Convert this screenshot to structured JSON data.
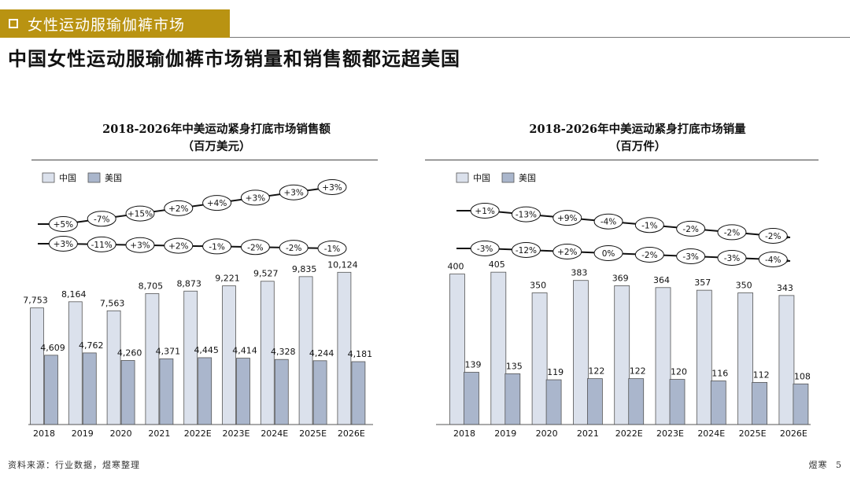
{
  "section_band": {
    "label": "女性运动服瑜伽裤市场"
  },
  "headline": "中国女性运动服瑜伽裤市场销量和销售额都远超美国",
  "source": "资料来源：行业数据，煜寒整理",
  "footer": {
    "brand": "煜寒",
    "page": "5"
  },
  "colors": {
    "china": "#dbe1ec",
    "us": "#aab6cc",
    "band": "#b99312"
  },
  "chart_data": [
    {
      "type": "bar",
      "title": "2018-2026年中美运动紧身打底市场销售额",
      "subtitle": "（百万美元）",
      "legend": [
        "中国",
        "美国"
      ],
      "categories": [
        "2018",
        "2019",
        "2020",
        "2021",
        "2022E",
        "2023E",
        "2024E",
        "2025E",
        "2026E"
      ],
      "series": [
        {
          "name": "中国",
          "values": [
            7753,
            8164,
            7563,
            8705,
            8873,
            9221,
            9527,
            9835,
            10124
          ],
          "labels": [
            "7,753",
            "8,164",
            "7,563",
            "8,705",
            "8,873",
            "9,221",
            "9,527",
            "9,835",
            "10,124"
          ]
        },
        {
          "name": "美国",
          "values": [
            4609,
            4762,
            4260,
            4371,
            4445,
            4414,
            4328,
            4244,
            4181
          ],
          "labels": [
            "4,609",
            "4,762",
            "4,260",
            "4,371",
            "4,445",
            "4,414",
            "4,328",
            "4,244",
            "4,181"
          ]
        }
      ],
      "growth_china": [
        "+5%",
        "-7%",
        "+15%",
        "+2%",
        "+4%",
        "+3%",
        "+3%",
        "+3%"
      ],
      "growth_us": [
        "+3%",
        "-11%",
        "+3%",
        "+2%",
        "-1%",
        "-2%",
        "-2%",
        "-1%"
      ],
      "ylim": [
        0,
        11500
      ]
    },
    {
      "type": "bar",
      "title": "2018-2026年中美运动紧身打底市场销量",
      "subtitle": "（百万件）",
      "legend": [
        "中国",
        "美国"
      ],
      "categories": [
        "2018",
        "2019",
        "2020",
        "2021",
        "2022E",
        "2023E",
        "2024E",
        "2025E",
        "2026E"
      ],
      "series": [
        {
          "name": "中国",
          "values": [
            400,
            405,
            350,
            383,
            369,
            364,
            357,
            350,
            343
          ],
          "labels": [
            "400",
            "405",
            "350",
            "383",
            "369",
            "364",
            "357",
            "350",
            "343"
          ]
        },
        {
          "name": "美国",
          "values": [
            139,
            135,
            119,
            122,
            122,
            120,
            116,
            112,
            108
          ],
          "labels": [
            "139",
            "135",
            "119",
            "122",
            "122",
            "120",
            "116",
            "112",
            "108"
          ]
        }
      ],
      "growth_china": [
        "+1%",
        "-13%",
        "+9%",
        "-4%",
        "-1%",
        "-2%",
        "-2%",
        "-2%"
      ],
      "growth_us": [
        "-3%",
        "-12%",
        "+2%",
        "0%",
        "-2%",
        "-3%",
        "-3%",
        "-4%"
      ],
      "ylim": [
        0,
        420
      ]
    }
  ]
}
